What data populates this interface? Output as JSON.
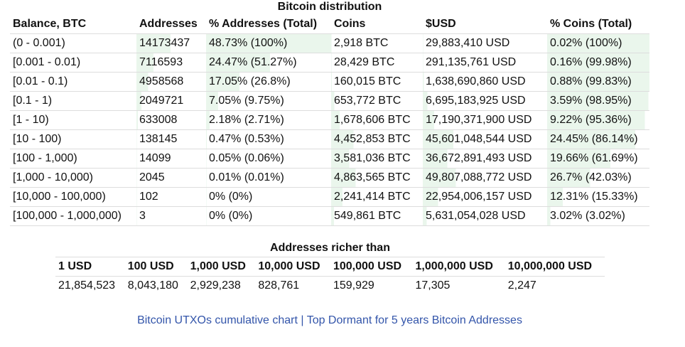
{
  "title": "Bitcoin distribution",
  "bar_color": "#eaf6ec",
  "headers": [
    "Balance, BTC",
    "Addresses",
    "% Addresses (Total)",
    "Coins",
    "$USD",
    "% Coins (Total)"
  ],
  "rows": [
    {
      "balance": "(0 - 0.001)",
      "addresses": "14173437",
      "pct_addr": "48.73% (100%)",
      "coins": "2,918 BTC",
      "usd": "29,883,410 USD",
      "pct_coins": "0.02% (100%)",
      "p_addr": 48.73,
      "c_addr": 100,
      "p_coins": 0.02,
      "c_coins": 100
    },
    {
      "balance": "[0.001 - 0.01)",
      "addresses": "7116593",
      "pct_addr": "24.47% (51.27%)",
      "coins": "28,429 BTC",
      "usd": "291,135,761 USD",
      "pct_coins": "0.16% (99.98%)",
      "p_addr": 24.47,
      "c_addr": 51.27,
      "p_coins": 0.16,
      "c_coins": 99.98
    },
    {
      "balance": "[0.01 - 0.1)",
      "addresses": "4958568",
      "pct_addr": "17.05% (26.8%)",
      "coins": "160,015 BTC",
      "usd": "1,638,690,860 USD",
      "pct_coins": "0.88% (99.83%)",
      "p_addr": 17.05,
      "c_addr": 26.8,
      "p_coins": 0.88,
      "c_coins": 99.83
    },
    {
      "balance": "[0.1 - 1)",
      "addresses": "2049721",
      "pct_addr": "7.05% (9.75%)",
      "coins": "653,772 BTC",
      "usd": "6,695,183,925 USD",
      "pct_coins": "3.59% (98.95%)",
      "p_addr": 7.05,
      "c_addr": 9.75,
      "p_coins": 3.59,
      "c_coins": 98.95
    },
    {
      "balance": "[1 - 10)",
      "addresses": "633008",
      "pct_addr": "2.18% (2.71%)",
      "coins": "1,678,606 BTC",
      "usd": "17,190,371,900 USD",
      "pct_coins": "9.22% (95.36%)",
      "p_addr": 2.18,
      "c_addr": 2.71,
      "p_coins": 9.22,
      "c_coins": 95.36
    },
    {
      "balance": "[10 - 100)",
      "addresses": "138145",
      "pct_addr": "0.47% (0.53%)",
      "coins": "4,452,853 BTC",
      "usd": "45,601,048,544 USD",
      "pct_coins": "24.45% (86.14%)",
      "p_addr": 0.47,
      "c_addr": 0.53,
      "p_coins": 24.45,
      "c_coins": 86.14
    },
    {
      "balance": "[100 - 1,000)",
      "addresses": "14099",
      "pct_addr": "0.05% (0.06%)",
      "coins": "3,581,036 BTC",
      "usd": "36,672,891,493 USD",
      "pct_coins": "19.66% (61.69%)",
      "p_addr": 0.05,
      "c_addr": 0.06,
      "p_coins": 19.66,
      "c_coins": 61.69
    },
    {
      "balance": "[1,000 - 10,000)",
      "addresses": "2045",
      "pct_addr": "0.01% (0.01%)",
      "coins": "4,863,565 BTC",
      "usd": "49,807,088,772 USD",
      "pct_coins": "26.7% (42.03%)",
      "p_addr": 0.01,
      "c_addr": 0.01,
      "p_coins": 26.7,
      "c_coins": 42.03
    },
    {
      "balance": "[10,000 - 100,000)",
      "addresses": "102",
      "pct_addr": "0% (0%)",
      "coins": "2,241,414 BTC",
      "usd": "22,954,006,157 USD",
      "pct_coins": "12.31% (15.33%)",
      "p_addr": 0,
      "c_addr": 0,
      "p_coins": 12.31,
      "c_coins": 15.33
    },
    {
      "balance": "[100,000 - 1,000,000)",
      "addresses": "3",
      "pct_addr": "0% (0%)",
      "coins": "549,861 BTC",
      "usd": "5,631,054,028 USD",
      "pct_coins": "3.02% (3.02%)",
      "p_addr": 0,
      "c_addr": 0,
      "p_coins": 3.02,
      "c_coins": 3.02
    }
  ],
  "richer": {
    "title": "Addresses richer than",
    "headers": [
      "1 USD",
      "100 USD",
      "1,000 USD",
      "10,000 USD",
      "100,000 USD",
      "1,000,000 USD",
      "10,000,000 USD"
    ],
    "values": [
      "21,854,523",
      "8,043,180",
      "2,929,238",
      "828,761",
      "159,929",
      "17,305",
      "2,247"
    ]
  },
  "links": {
    "utxo": "Bitcoin UTXOs cumulative chart",
    "sep": "|",
    "dormant": "Top Dormant for 5 years Bitcoin Addresses"
  }
}
